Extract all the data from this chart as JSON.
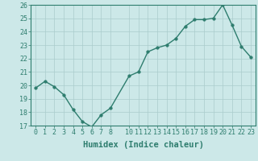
{
  "x": [
    0,
    1,
    2,
    3,
    4,
    5,
    6,
    7,
    8,
    10,
    11,
    12,
    13,
    14,
    15,
    16,
    17,
    18,
    19,
    20,
    21,
    22,
    23
  ],
  "y": [
    19.8,
    20.3,
    19.9,
    19.3,
    18.2,
    17.3,
    16.9,
    17.8,
    18.3,
    20.7,
    21.0,
    22.5,
    22.8,
    23.0,
    23.5,
    24.4,
    24.9,
    24.9,
    25.0,
    26.0,
    24.5,
    22.9,
    22.1
  ],
  "line_color": "#2e7d6e",
  "marker_color": "#2e7d6e",
  "bg_color": "#cce8e8",
  "grid_color": "#aacccc",
  "xlabel": "Humidex (Indice chaleur)",
  "xlim": [
    -0.5,
    23.5
  ],
  "ylim": [
    17,
    26
  ],
  "yticks": [
    17,
    18,
    19,
    20,
    21,
    22,
    23,
    24,
    25,
    26
  ],
  "xticks": [
    0,
    1,
    2,
    3,
    4,
    5,
    6,
    7,
    8,
    10,
    11,
    12,
    13,
    14,
    15,
    16,
    17,
    18,
    19,
    20,
    21,
    22,
    23
  ],
  "tick_label_size": 6.0,
  "xlabel_size": 7.5,
  "line_width": 1.0,
  "marker_size": 2.5
}
